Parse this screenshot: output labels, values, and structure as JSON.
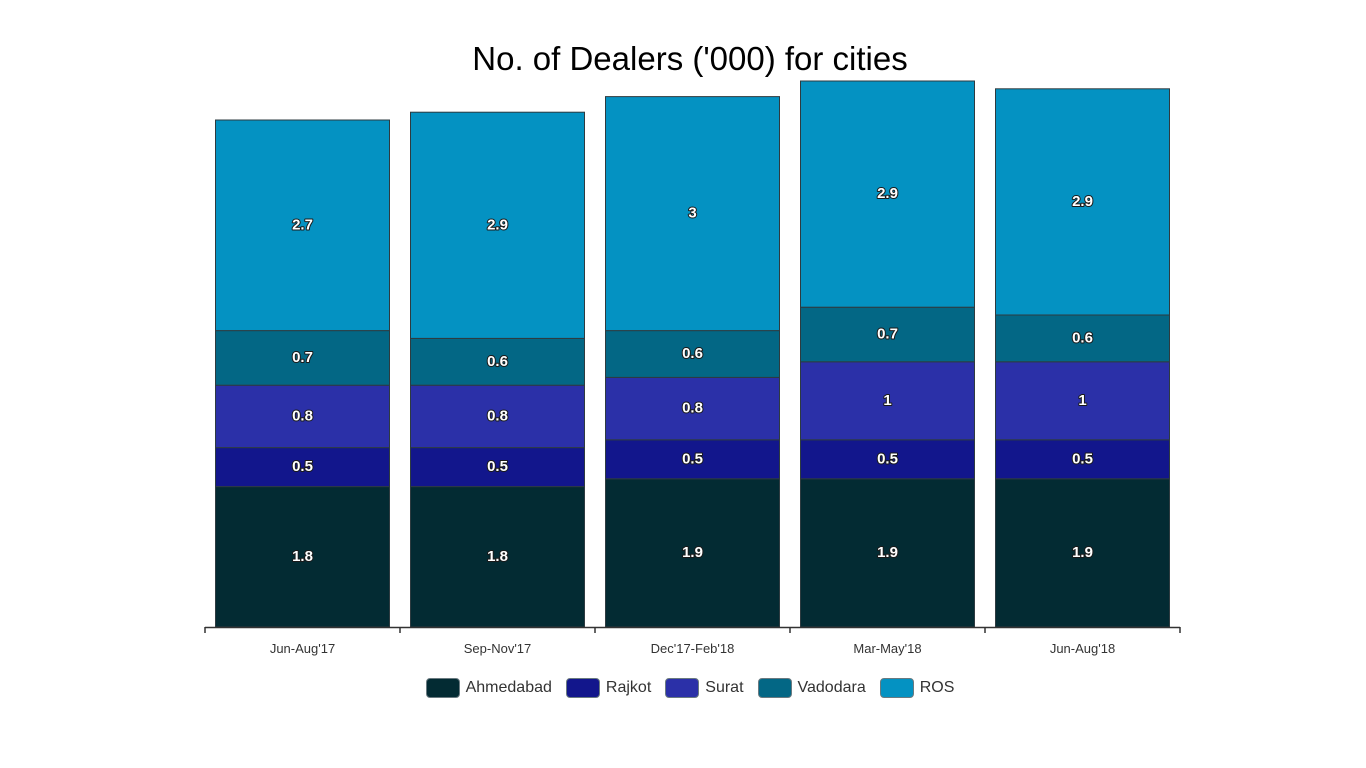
{
  "chart_data": {
    "type": "bar",
    "stacked": true,
    "title": "No. of Dealers ('000) for cities",
    "xlabel": "",
    "ylabel": "",
    "ylim": [
      0,
      7
    ],
    "grid": false,
    "legend_position": "bottom",
    "categories": [
      "Jun-Aug'17",
      "Sep-Nov'17",
      "Dec'17-Feb'18",
      "Mar-May'18",
      "Jun-Aug'18"
    ],
    "series": [
      {
        "name": "Ahmedabad",
        "color": "#032b33",
        "values": [
          1.8,
          1.8,
          1.9,
          1.9,
          1.9
        ]
      },
      {
        "name": "Rajkot",
        "color": "#12168c",
        "values": [
          0.5,
          0.5,
          0.5,
          0.5,
          0.5
        ]
      },
      {
        "name": "Surat",
        "color": "#2b30a8",
        "values": [
          0.8,
          0.8,
          0.8,
          1,
          1
        ]
      },
      {
        "name": "Vadodara",
        "color": "#036785",
        "values": [
          0.7,
          0.6,
          0.6,
          0.7,
          0.6
        ]
      },
      {
        "name": "ROS",
        "color": "#0492c2",
        "values": [
          2.7,
          2.9,
          3,
          2.9,
          2.9
        ]
      }
    ]
  }
}
